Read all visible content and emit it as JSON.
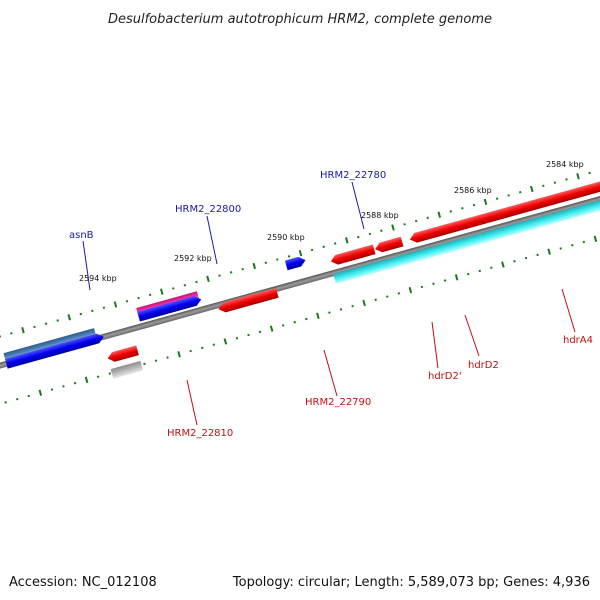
{
  "title": "Desulfobacterium autotrophicum HRM2, complete genome",
  "footer": {
    "accession": "Accession: NC_012108",
    "summary": "Topology: circular; Length: 5,589,073 bp; Genes: 4,936"
  },
  "kbp_labels": [
    "2584 kbp",
    "2586 kbp",
    "2588 kbp",
    "2590 kbp",
    "2592 kbp",
    "2594 kbp"
  ],
  "gene_labels_forward": [
    "HRM2_22780",
    "HRM2_22800",
    "asnB"
  ],
  "gene_labels_reverse": [
    "HRM2_22790",
    "HRM2_22810",
    "hdrD2'",
    "hdrD2",
    "hdrA4"
  ],
  "colors": {
    "forward_label": "#1a1aa8",
    "reverse_label": "#c01010",
    "backbone": "#7a7a7a",
    "tick": "#1a7a1a"
  }
}
